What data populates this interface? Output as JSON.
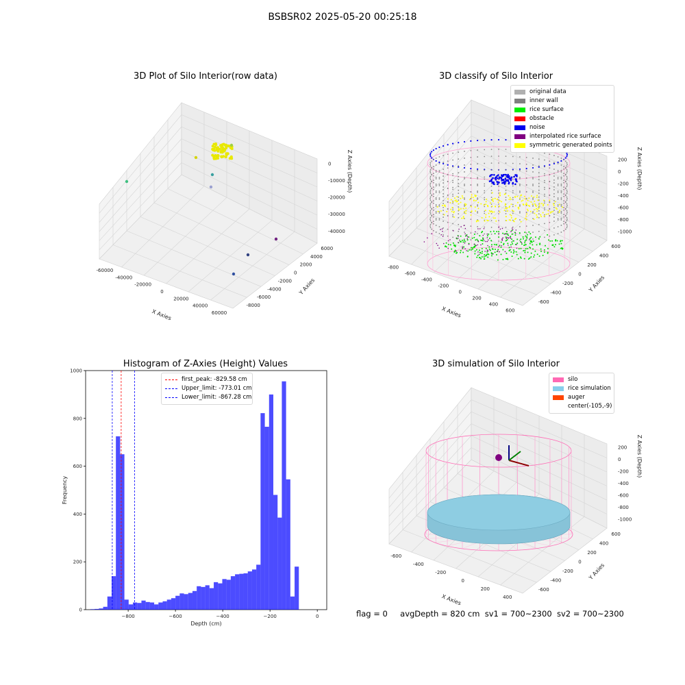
{
  "suptitle": "BSBSR02 2025-05-20 00:25:18",
  "panels": {
    "raw": {
      "title": "3D Plot of Silo Interior(row data)",
      "xlabel": "X Axies",
      "ylabel": "Y Axies",
      "zlabel": "Z Axies (Depth)",
      "xticks": [
        "-60000",
        "-40000",
        "-20000",
        "0",
        "20000",
        "40000",
        "60000"
      ],
      "yticks": [
        "6000",
        "4000",
        "2000",
        "0",
        "-2000",
        "-4000",
        "-6000",
        "-8000"
      ],
      "zticks": [
        "0",
        "-10000",
        "-20000",
        "-30000",
        "-40000"
      ]
    },
    "classify": {
      "title": "3D classify of Silo Interior",
      "xlabel": "X Axies",
      "ylabel": "Y Axies",
      "zlabel": "Z Axies (Depth)",
      "xticks": [
        "-800",
        "-600",
        "-400",
        "-200",
        "0",
        "200",
        "400",
        "600"
      ],
      "yticks": [
        "600",
        "400",
        "200",
        "0",
        "-200",
        "-400",
        "-600"
      ],
      "zticks": [
        "200",
        "0",
        "-200",
        "-400",
        "-600",
        "-800",
        "-1000"
      ],
      "legend": [
        {
          "label": "original data",
          "color": "#b0b0b0"
        },
        {
          "label": "inner wall",
          "color": "#808080"
        },
        {
          "label": "rice surface",
          "color": "#00ee00"
        },
        {
          "label": "obstacle",
          "color": "#ff0000"
        },
        {
          "label": "noise",
          "color": "#0000ee"
        },
        {
          "label": "interpolated rice surface",
          "color": "#800080"
        },
        {
          "label": "symmetric generated points",
          "color": "#ffff00"
        }
      ]
    },
    "simulation": {
      "title": "3D simulation of Silo Interior",
      "xlabel": "X Axies",
      "ylabel": "Y Axies",
      "zlabel": "Z Axies (Depth)",
      "xticks": [
        "-600",
        "-400",
        "-200",
        "0",
        "200",
        "400"
      ],
      "yticks": [
        "600",
        "400",
        "200",
        "0",
        "-200",
        "-400",
        "-600"
      ],
      "zticks": [
        "200",
        "0",
        "-200",
        "-400",
        "-600",
        "-800",
        "-1000"
      ],
      "legend": [
        {
          "label": "silo",
          "color": "#ff69b4"
        },
        {
          "label": "rice simulation",
          "color": "#87ceeb"
        },
        {
          "label": "auger",
          "color": "#ff4500"
        },
        {
          "label": "center(-105,-9)",
          "color": ""
        }
      ]
    }
  },
  "status": {
    "flag": "flag = 0",
    "avg": "avgDepth = 820 cm",
    "sv1": "sv1 = 700~2300",
    "sv2": "sv2 = 700~2300"
  },
  "chart_data": {
    "type": "bar",
    "title": "Histogram of Z-Axies (Height) Values",
    "xlabel": "Depth (cm)",
    "ylabel": "Frequency",
    "xlim": [
      -980,
      40
    ],
    "ylim": [
      0,
      1000
    ],
    "xticks": [
      -800,
      -600,
      -400,
      -200,
      0
    ],
    "yticks": [
      0,
      200,
      400,
      600,
      800,
      1000
    ],
    "bin_start": -960,
    "bin_width": 18,
    "color": "#0000ff",
    "values": [
      2,
      3,
      5,
      12,
      55,
      140,
      725,
      650,
      42,
      22,
      30,
      28,
      38,
      32,
      30,
      22,
      30,
      35,
      42,
      48,
      58,
      68,
      65,
      70,
      78,
      98,
      95,
      102,
      90,
      115,
      110,
      128,
      125,
      140,
      148,
      150,
      152,
      160,
      168,
      188,
      822,
      765,
      900,
      480,
      385,
      955,
      545,
      55,
      180
    ],
    "vlines": [
      {
        "label": "first_peak: -829.58 cm",
        "x": -829.58,
        "color": "#ff0000"
      },
      {
        "label": "Upper_limit: -773.01 cm",
        "x": -773.01,
        "color": "#0000ff"
      },
      {
        "label": "Lower_limit: -867.28 cm",
        "x": -867.28,
        "color": "#0000ff"
      }
    ]
  }
}
